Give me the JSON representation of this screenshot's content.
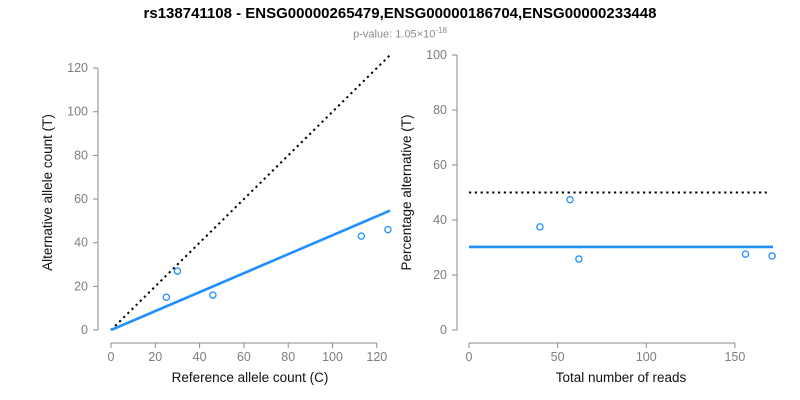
{
  "header": {
    "title": "rs138741108 - ENSG00000265479,ENSG00000186704,ENSG00000233448",
    "subtitle_prefix": "p-value: 1.05×10",
    "subtitle_exponent": "-18"
  },
  "colors": {
    "accent_blue": "#1E90FF",
    "dotted_black": "#000000",
    "axis_line": "#898989",
    "tick_label": "#7e7e7e",
    "axis_title": "#111111",
    "title": "#000000",
    "subtitle": "#8c8c8c",
    "background": "#ffffff"
  },
  "chart_data": [
    {
      "id": "allele-counts-scatter",
      "type": "scatter",
      "xlabel": "Reference allele count (C)",
      "ylabel": "Alternative allele count (T)",
      "xlim": [
        0,
        125.5
      ],
      "ylim": [
        0,
        126
      ],
      "xticks": [
        0,
        20,
        40,
        60,
        80,
        100,
        120
      ],
      "yticks": [
        0,
        20,
        40,
        60,
        80,
        100,
        120
      ],
      "grid": false,
      "legend": false,
      "points": [
        {
          "x": 25,
          "y": 15
        },
        {
          "x": 30,
          "y": 27
        },
        {
          "x": 46,
          "y": 16
        },
        {
          "x": 113,
          "y": 43
        },
        {
          "x": 125,
          "y": 46
        }
      ],
      "lines": [
        {
          "name": "identity-line",
          "style": "dotted",
          "color": "#000000",
          "x1": 0,
          "y1": 0,
          "x2": 126,
          "y2": 126
        },
        {
          "name": "fit-line",
          "style": "solid",
          "color": "#1E90FF",
          "x1": 0,
          "y1": 0,
          "x2": 126,
          "y2": 54.7,
          "slope": 0.434
        }
      ]
    },
    {
      "id": "percentage-alternative-scatter",
      "type": "scatter",
      "xlabel": "Total number of reads",
      "ylabel": "Percentage alternative (T)",
      "xlim": [
        0,
        171.5
      ],
      "ylim": [
        0,
        100
      ],
      "xticks": [
        0,
        50,
        100,
        150
      ],
      "yticks": [
        0,
        20,
        40,
        60,
        80,
        100
      ],
      "grid": false,
      "legend": false,
      "points": [
        {
          "x": 40,
          "y": 37.5
        },
        {
          "x": 57,
          "y": 47.4
        },
        {
          "x": 62,
          "y": 25.8
        },
        {
          "x": 156,
          "y": 27.6
        },
        {
          "x": 171,
          "y": 26.9
        }
      ],
      "lines": [
        {
          "name": "expected-50pct-line",
          "style": "dotted",
          "color": "#000000",
          "x1": 0,
          "y1": 50,
          "x2": 168,
          "y2": 50
        },
        {
          "name": "observed-mean-line",
          "style": "solid",
          "color": "#1E90FF",
          "x1": 0,
          "y1": 30.2,
          "x2": 171.5,
          "y2": 30.2
        }
      ]
    }
  ]
}
